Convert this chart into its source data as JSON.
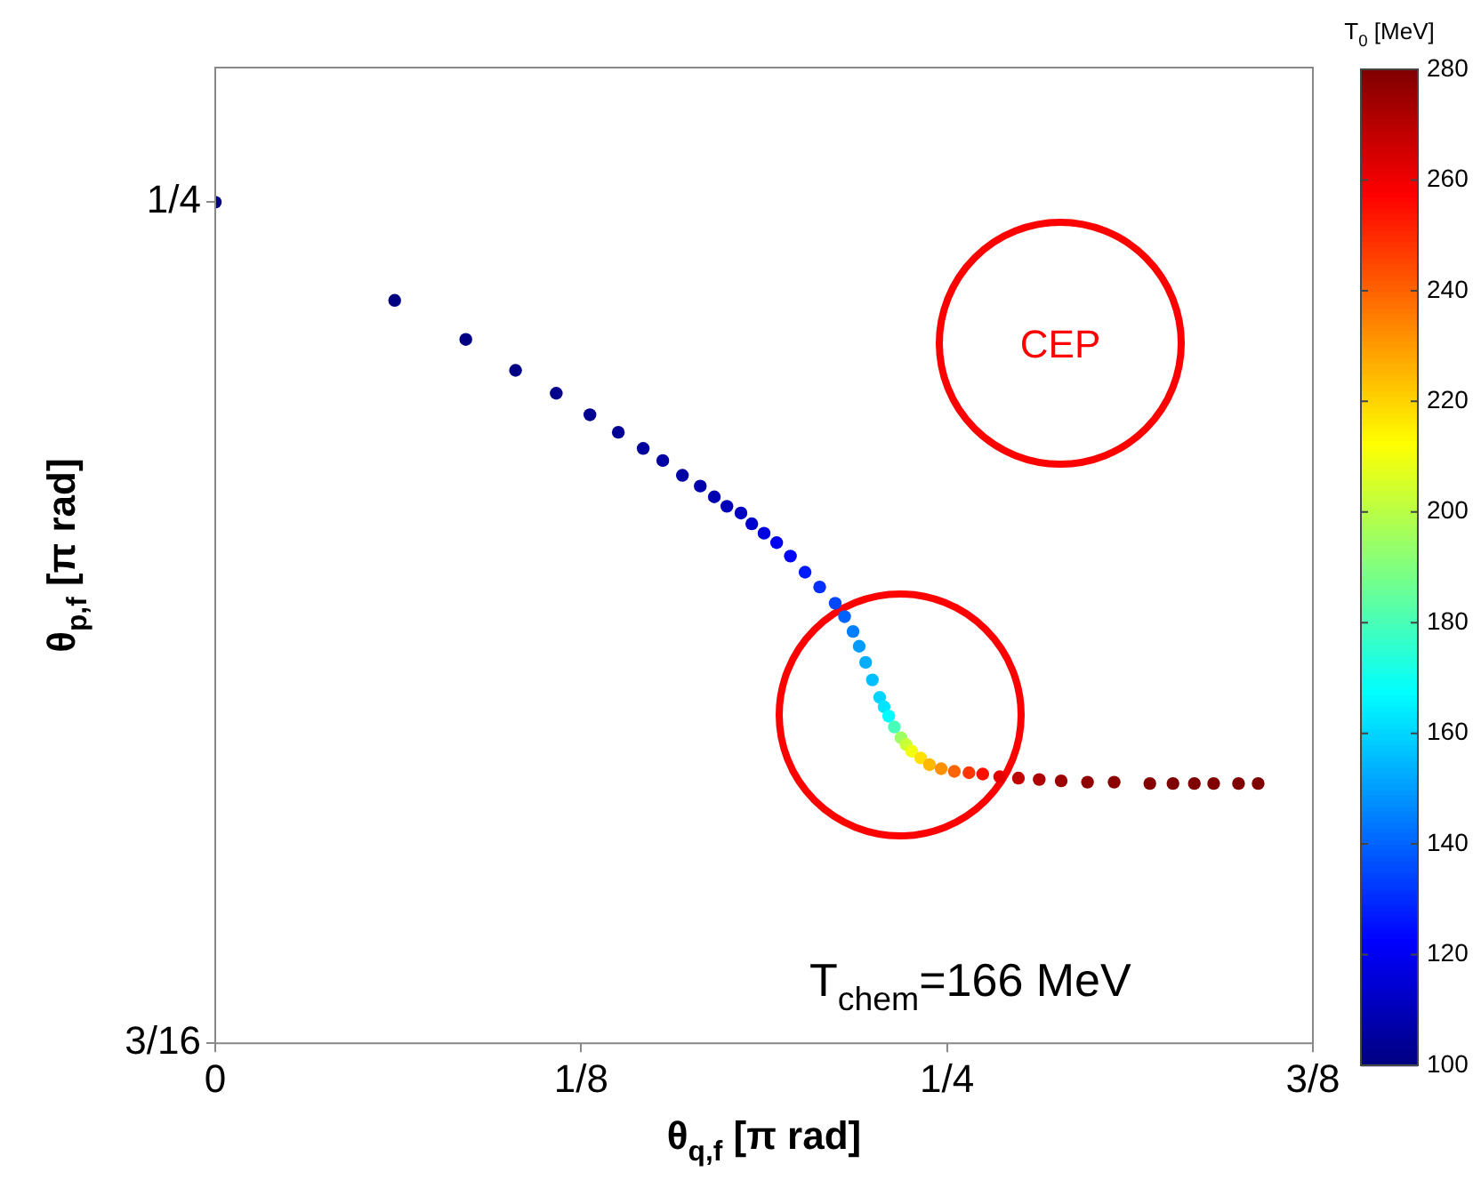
{
  "chart_data": {
    "type": "scatter",
    "xlabel": "θ$_{q,f}$ [π rad]",
    "ylabel": "θ$_{p,f}$ [π rad]",
    "clabel": "T$_{0}$ [MeV]",
    "annotations": [
      "CEP",
      "T$_{chem}$=166 MeV"
    ],
    "xlim": [
      0,
      0.375
    ],
    "xticks": [
      {
        "value": 0,
        "label": "0"
      },
      {
        "value": 0.125,
        "label": "1/8"
      },
      {
        "value": 0.25,
        "label": "1/4"
      },
      {
        "value": 0.375,
        "label": "3/8"
      }
    ],
    "ylim": [
      0.1875,
      0.26
    ],
    "yticks": [
      {
        "value": 0.1875,
        "label": "3/16"
      },
      {
        "value": 0.25,
        "label": "1/4"
      }
    ],
    "clim": [
      100,
      280
    ],
    "cticks": [
      100,
      120,
      140,
      160,
      180,
      200,
      220,
      240,
      260,
      280
    ],
    "marker": "circle",
    "grid": false,
    "legend": false,
    "x": [
      0,
      0.0613,
      0.0856,
      0.1026,
      0.1165,
      0.128,
      0.1377,
      0.1462,
      0.1529,
      0.1596,
      0.1657,
      0.1705,
      0.1748,
      0.1796,
      0.1833,
      0.1875,
      0.1918,
      0.1965,
      0.2015,
      0.2065,
      0.2118,
      0.215,
      0.2179,
      0.22,
      0.2222,
      0.2245,
      0.227,
      0.2285,
      0.2301,
      0.232,
      0.2343,
      0.236,
      0.238,
      0.241,
      0.244,
      0.248,
      0.2525,
      0.2575,
      0.2622,
      0.268,
      0.2744,
      0.2815,
      0.289,
      0.298,
      0.3071,
      0.3193,
      0.3272,
      0.3345,
      0.3411,
      0.3496,
      0.3563
    ],
    "values": [
      0.25,
      0.2427,
      0.2398,
      0.2375,
      0.2358,
      0.2342,
      0.2329,
      0.2317,
      0.2308,
      0.2297,
      0.2289,
      0.2281,
      0.2274,
      0.2269,
      0.2261,
      0.2254,
      0.2247,
      0.2237,
      0.2225,
      0.2214,
      0.2202,
      0.2192,
      0.2181,
      0.217,
      0.2158,
      0.2145,
      0.2132,
      0.2125,
      0.2118,
      0.211,
      0.2102,
      0.2097,
      0.2092,
      0.2087,
      0.2082,
      0.2079,
      0.2077,
      0.2076,
      0.2075,
      0.2073,
      0.2072,
      0.2071,
      0.207,
      0.2069,
      0.2069,
      0.2068,
      0.2068,
      0.2068,
      0.2068,
      0.2068,
      0.2068
    ],
    "cvalues": [
      100,
      100,
      100,
      101,
      102,
      103,
      104,
      105,
      106,
      107,
      108,
      109,
      110,
      112,
      114,
      117,
      120,
      123,
      127,
      131,
      135,
      140,
      145,
      150,
      153,
      156,
      160,
      163,
      167,
      180,
      195,
      203,
      210,
      218,
      225,
      232,
      240,
      248,
      255,
      262,
      268,
      272,
      275,
      277,
      278,
      279,
      280,
      280,
      280,
      280,
      280
    ]
  }
}
